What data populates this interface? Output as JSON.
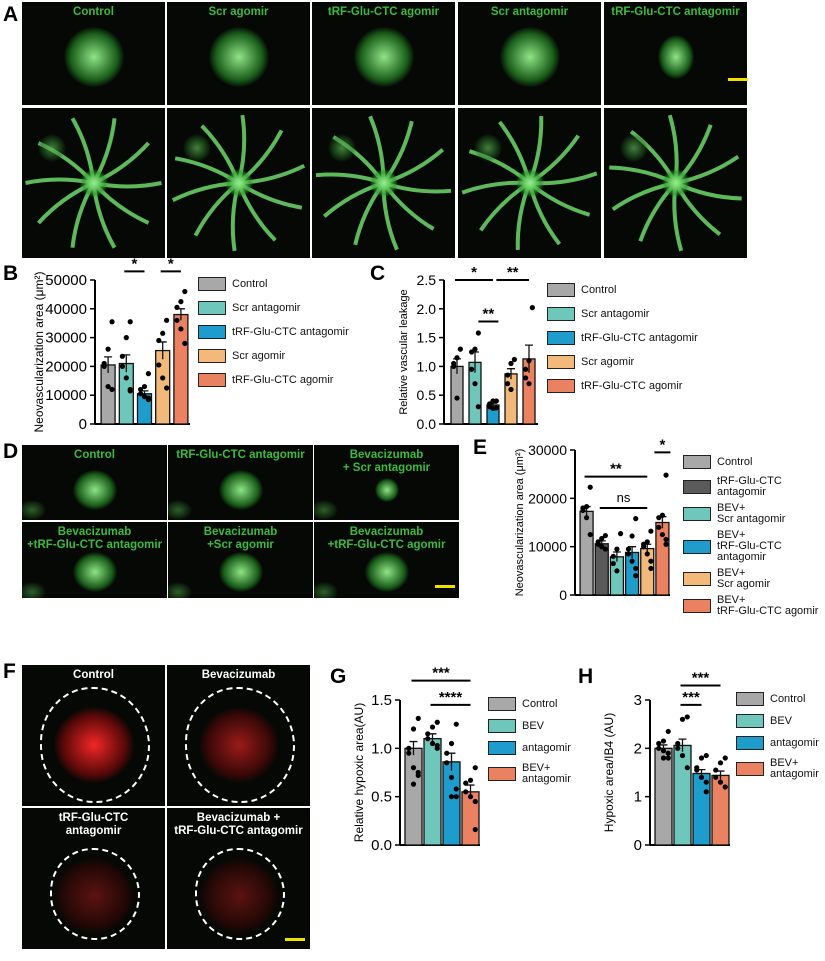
{
  "panels": {
    "A": "A",
    "B": "B",
    "C": "C",
    "D": "D",
    "E": "E",
    "F": "F",
    "G": "G",
    "H": "H"
  },
  "panel_A": {
    "captions": [
      "Control",
      "Scr agomir",
      "tRF-Glu-CTC agomir",
      "Scr antagomir",
      "tRF-Glu-CTC antagomir"
    ],
    "caption_color": "#3dbb3d"
  },
  "panel_D": {
    "captions": [
      "Control",
      "tRF-Glu-CTC antagomir",
      "Bevacizumab\n+ Scr antagomir",
      "Bevacizumab\n+tRF-Glu-CTC antagomir",
      "Bevacizumab\n+Scr agomir",
      "Bevacizumab\n+tRF-Glu-CTC agomir"
    ]
  },
  "panel_F": {
    "captions": [
      "Control",
      "Bevacizumab",
      "tRF-Glu-CTC\nantagomir",
      "Bevacizumab +\ntRF-Glu-CTC antagomir"
    ]
  },
  "colors": {
    "control": "#a8a8a8",
    "scr_antagomir": "#6fc6ba",
    "trf_antagomir": "#1e9dcc",
    "scr_agomir": "#f3b97a",
    "trf_agomir": "#ea8160",
    "dark": "#5a5a5a"
  },
  "chart_data": [
    {
      "id": "B",
      "type": "bar",
      "ylabel": "Neovascularization area (μm²)",
      "ylim": [
        0,
        50000
      ],
      "yticks": [
        0,
        10000,
        20000,
        30000,
        40000,
        50000
      ],
      "categories": [
        "Control",
        "Scr antagomir",
        "tRF-Glu-CTC antagomir",
        "Scr agomir",
        "tRF-Glu-CTC agomir"
      ],
      "colors": [
        "#a8a8a8",
        "#6fc6ba",
        "#1e9dcc",
        "#f3b97a",
        "#ea8160"
      ],
      "values": [
        20500,
        21000,
        10500,
        25500,
        38000
      ],
      "sem": [
        2800,
        3000,
        1000,
        3000,
        2000
      ],
      "points": [
        [
          35500,
          26000,
          21000,
          20000,
          13000,
          12000
        ],
        [
          35500,
          30000,
          23500,
          20000,
          16000,
          11500,
          12000
        ],
        [
          17500,
          13000,
          12000,
          10500,
          9500,
          9000,
          8500
        ],
        [
          36000,
          31500,
          29000,
          20500,
          16000,
          12500
        ],
        [
          46000,
          42500,
          40500,
          36000,
          33000,
          28000
        ]
      ],
      "significance": [
        {
          "from": 1,
          "to": 2,
          "label": "*"
        },
        {
          "from": 3,
          "to": 4,
          "label": "*"
        }
      ]
    },
    {
      "id": "C",
      "type": "bar",
      "ylabel": "Relative vascular leakage",
      "ylim": [
        0,
        2.5
      ],
      "yticks": [
        "0.0",
        "0.5",
        "1.0",
        "1.5",
        "2.0",
        "2.5"
      ],
      "categories": [
        "Control",
        "Scr antagomir",
        "tRF-Glu-CTC antagomir",
        "Scr agomir",
        "tRF-Glu-CTC agomir"
      ],
      "colors": [
        "#a8a8a8",
        "#6fc6ba",
        "#1e9dcc",
        "#f3b97a",
        "#ea8160"
      ],
      "values": [
        1.0,
        1.07,
        0.33,
        0.87,
        1.13
      ],
      "sem": [
        0.13,
        0.18,
        0.03,
        0.09,
        0.24
      ],
      "points": [
        [
          1.3,
          1.15,
          1.05,
          1.0,
          0.45
        ],
        [
          1.58,
          1.3,
          1.25,
          0.95,
          0.7,
          0.3
        ],
        [
          0.4,
          0.4,
          0.35,
          0.3,
          0.27,
          0.28
        ],
        [
          1.12,
          1.05,
          0.85,
          0.7,
          0.6
        ],
        [
          2.02,
          1.1,
          0.95,
          0.8,
          0.7
        ]
      ],
      "significance": [
        {
          "from": 0,
          "to": 2,
          "label": "*",
          "level": 2.5
        },
        {
          "from": 2.3,
          "to": 4,
          "label": "**",
          "level": 2.5
        },
        {
          "from": 1.3,
          "to": 2.3,
          "label": "**",
          "level": 1.78
        }
      ]
    },
    {
      "id": "E",
      "type": "bar",
      "ylabel": "Neovascularization area (μm²)",
      "ylim": [
        0,
        30000
      ],
      "yticks": [
        0,
        10000,
        20000,
        30000
      ],
      "categories": [
        "Control",
        "tRF-Glu-CTC antagomir",
        "BEV+\nScr antagomir",
        "BEV+\ntRF-Glu-CTC antagomir",
        "BEV+\nScr agomir",
        "BEV+\ntRF-Glu-CTC agomir"
      ],
      "colors": [
        "#a8a8a8",
        "#5a5a5a",
        "#6fc6ba",
        "#1e9dcc",
        "#f3b97a",
        "#ea8160"
      ],
      "values": [
        17300,
        10600,
        7900,
        8800,
        9600,
        15000
      ],
      "sem": [
        1000,
        600,
        1000,
        1200,
        900,
        1200
      ],
      "points": [
        [
          22300,
          18300,
          18000,
          17500,
          16000,
          12500
        ],
        [
          12300,
          11700,
          11000,
          10500,
          10000,
          9500
        ],
        [
          12700,
          9500,
          8000,
          6500,
          5000
        ],
        [
          15800,
          12200,
          9500,
          8500,
          7000,
          5500,
          4000
        ],
        [
          13200,
          11000,
          10500,
          10000,
          8500,
          7000,
          5500
        ],
        [
          24800,
          16500,
          16000,
          14000,
          12500,
          11500,
          10500
        ]
      ],
      "significance": [
        {
          "from": 0,
          "to": 4,
          "label": "**",
          "level": 24500
        },
        {
          "from": 1,
          "to": 4,
          "label": "ns",
          "level": 18000
        },
        {
          "from": 4.8,
          "to": 5.2,
          "label": "*",
          "level": 29500
        }
      ]
    },
    {
      "id": "G",
      "type": "bar",
      "ylabel": "Relative hypoxic area(AU)",
      "ylim": [
        0,
        1.5
      ],
      "yticks": [
        "0.0",
        "0.5",
        "1.0",
        "1.5"
      ],
      "categories": [
        "Control",
        "BEV",
        "antagomir",
        "BEV+\nantagomir"
      ],
      "colors": [
        "#a8a8a8",
        "#6fc6ba",
        "#1e9dcc",
        "#ea8160"
      ],
      "values": [
        1.0,
        1.1,
        0.86,
        0.55
      ],
      "sem": [
        0.07,
        0.05,
        0.09,
        0.07
      ],
      "points": [
        [
          1.31,
          1.2,
          1.0,
          0.95,
          0.8,
          0.75,
          0.72,
          0.63
        ],
        [
          1.27,
          1.22,
          1.15,
          1.1,
          1.05,
          1.03,
          1.0
        ],
        [
          1.25,
          1.05,
          0.95,
          0.85,
          0.7,
          0.58,
          0.5,
          0.5
        ],
        [
          0.8,
          0.67,
          0.64,
          0.55,
          0.5,
          0.45,
          0.16
        ]
      ],
      "significance": [
        {
          "from": 0,
          "to": 3,
          "label": "***",
          "level": 1.7
        },
        {
          "from": 1,
          "to": 3,
          "label": "****",
          "level": 1.45
        }
      ]
    },
    {
      "id": "H",
      "type": "bar",
      "ylabel": "Hypoxic area/IB4 (AU)",
      "ylim": [
        0,
        3
      ],
      "yticks": [
        0,
        1,
        2,
        3
      ],
      "categories": [
        "Control",
        "BEV",
        "antagomir",
        "BEV+\nantagomir"
      ],
      "colors": [
        "#a8a8a8",
        "#6fc6ba",
        "#1e9dcc",
        "#ea8160"
      ],
      "values": [
        2.0,
        2.06,
        1.48,
        1.44
      ],
      "sem": [
        0.07,
        0.13,
        0.08,
        0.09
      ],
      "points": [
        [
          2.35,
          2.15,
          2.1,
          2.0,
          1.95,
          1.9,
          1.8,
          1.8
        ],
        [
          2.65,
          2.6,
          2.1,
          2.0,
          1.85,
          1.6
        ],
        [
          1.85,
          1.8,
          1.6,
          1.55,
          1.4,
          1.3,
          1.1
        ],
        [
          1.8,
          1.7,
          1.55,
          1.4,
          1.3,
          1.2
        ]
      ],
      "significance": [
        {
          "from": 1,
          "to": 3,
          "label": "***",
          "level": 3.3
        },
        {
          "from": 1,
          "to": 2,
          "label": "***",
          "level": 2.9
        }
      ]
    }
  ]
}
